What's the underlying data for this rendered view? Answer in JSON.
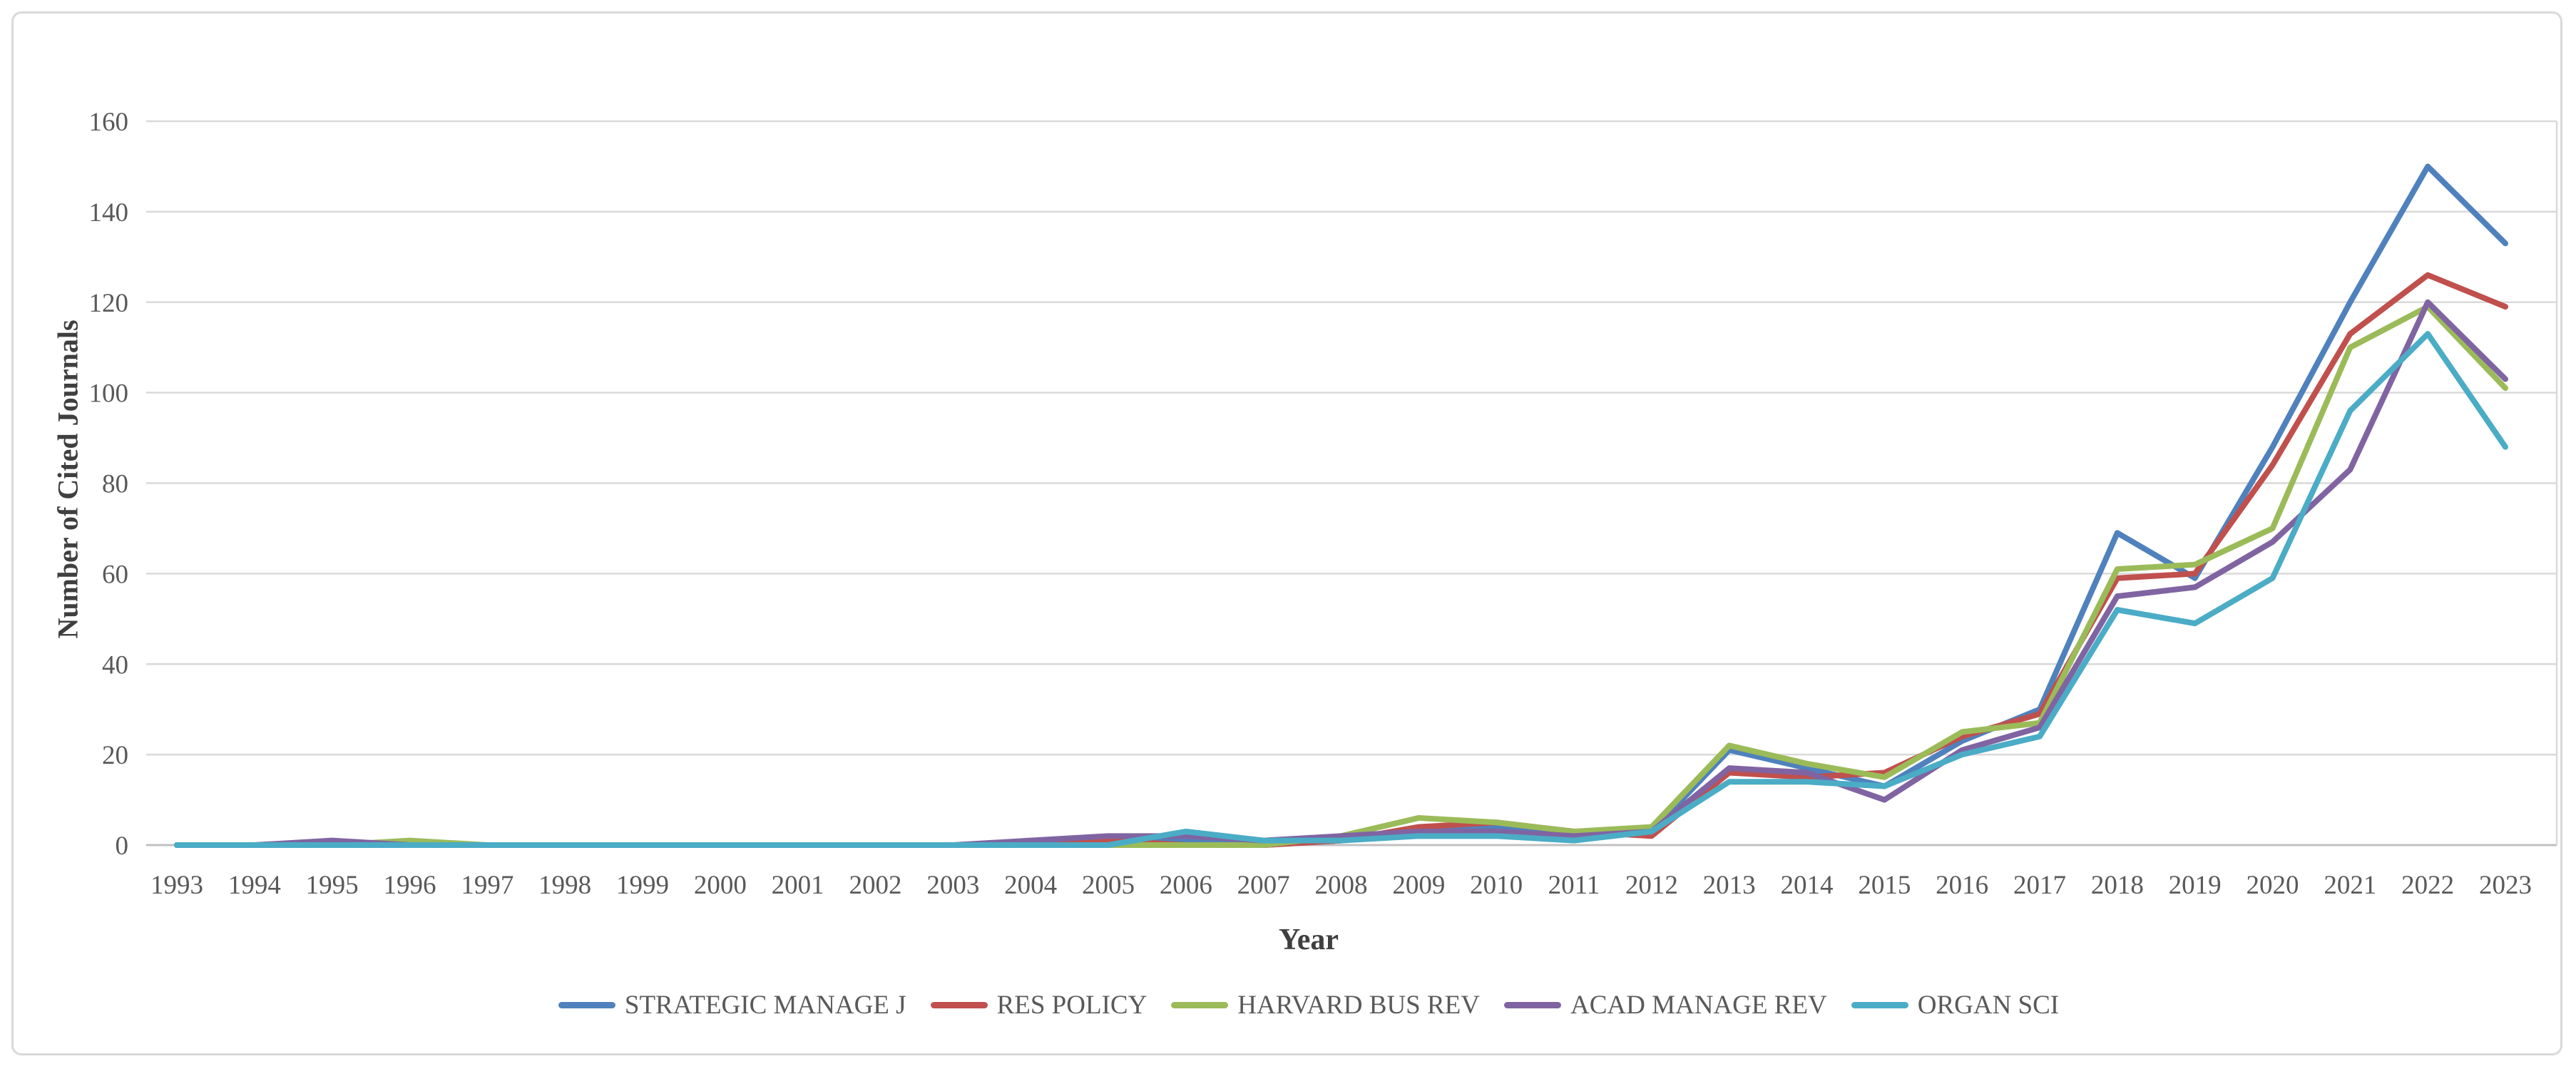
{
  "chart_data": {
    "type": "line",
    "title": "",
    "xlabel": "Year",
    "ylabel": "Number of Cited Journals",
    "ylim": [
      0,
      160
    ],
    "ytick_step": 20,
    "yticks": [
      0,
      20,
      40,
      60,
      80,
      100,
      120,
      140,
      160
    ],
    "grid": true,
    "legend_position": "bottom-center",
    "categories": [
      "1993",
      "1994",
      "1995",
      "1996",
      "1997",
      "1998",
      "1999",
      "2000",
      "2001",
      "2002",
      "2003",
      "2004",
      "2005",
      "2006",
      "2007",
      "2008",
      "2009",
      "2010",
      "2011",
      "2012",
      "2013",
      "2014",
      "2015",
      "2016",
      "2017",
      "2018",
      "2019",
      "2020",
      "2021",
      "2022",
      "2023"
    ],
    "series": [
      {
        "name": "STRATEGIC MANAGE J",
        "color": "#4F81BD",
        "values": [
          0,
          0,
          0,
          0,
          0,
          0,
          0,
          0,
          0,
          0,
          0,
          0,
          1,
          1,
          0,
          1,
          3,
          4,
          2,
          3,
          21,
          17,
          13,
          23,
          30,
          69,
          59,
          88,
          120,
          150,
          133
        ]
      },
      {
        "name": "RES POLICY",
        "color": "#C0504D",
        "values": [
          0,
          0,
          0,
          0,
          0,
          0,
          0,
          0,
          0,
          0,
          0,
          0,
          1,
          0,
          0,
          1,
          4,
          5,
          3,
          2,
          16,
          15,
          16,
          24,
          29,
          59,
          60,
          84,
          113,
          126,
          119
        ]
      },
      {
        "name": "HARVARD BUS REV",
        "color": "#9BBB59",
        "values": [
          0,
          0,
          0,
          1,
          0,
          0,
          0,
          0,
          0,
          0,
          0,
          0,
          0,
          0,
          0,
          2,
          6,
          5,
          3,
          4,
          22,
          18,
          15,
          25,
          27,
          61,
          62,
          70,
          110,
          119,
          101
        ]
      },
      {
        "name": "ACAD MANAGE REV",
        "color": "#8064A2",
        "values": [
          0,
          0,
          1,
          0,
          0,
          0,
          0,
          0,
          0,
          0,
          0,
          1,
          2,
          2,
          1,
          2,
          3,
          3,
          2,
          3,
          17,
          16,
          10,
          21,
          26,
          55,
          57,
          67,
          83,
          120,
          103
        ]
      },
      {
        "name": "ORGAN SCI",
        "color": "#4BACC6",
        "values": [
          0,
          0,
          0,
          0,
          0,
          0,
          0,
          0,
          0,
          0,
          0,
          0,
          0,
          3,
          1,
          1,
          2,
          2,
          1,
          3,
          14,
          14,
          13,
          20,
          24,
          52,
          49,
          59,
          96,
          113,
          88
        ]
      }
    ]
  },
  "styles": {
    "background": "#FFFFFF",
    "frame_border": "#D9D9D9",
    "gridline_color": "#D9D9D9",
    "axis_line_color": "#C0C0C0",
    "right_border_color": "#D9D9D9",
    "tick_label_color": "#595959",
    "title_color": "#3F3F3F",
    "line_width": 8
  }
}
